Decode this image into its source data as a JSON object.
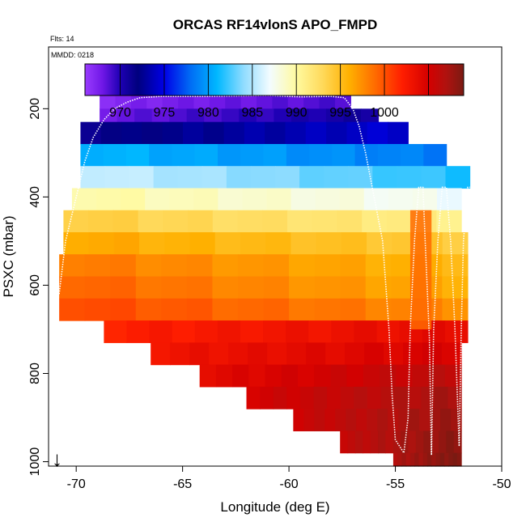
{
  "chart_data": {
    "type": "heatmap",
    "title": "ORCAS RF14vlonS APO_FMPD",
    "flights_label": "Flts: 14",
    "date_label": "MMDD: 0218",
    "xlabel": "Longitude (deg E)",
    "ylabel": "PSXC (mbar)",
    "xlim": [
      -71.3,
      -50
    ],
    "ylim": [
      1010,
      60
    ],
    "x_ticks": [
      -70,
      -65,
      -60,
      -55,
      -50
    ],
    "x_tick_labels": [
      "-70",
      "-65",
      "-60",
      "-55",
      "-50"
    ],
    "y_ticks": [
      200,
      400,
      600,
      800,
      1000
    ],
    "y_tick_labels": [
      "200",
      "400",
      "600",
      "800",
      "1000"
    ],
    "colorbar": {
      "range": [
        966,
        1009
      ],
      "tick_values": [
        970,
        975,
        980,
        985,
        990,
        995,
        1000
      ],
      "tick_labels": [
        "970",
        "975",
        "980",
        "985",
        "990",
        "995",
        "1000"
      ],
      "divisions": [
        970,
        975,
        980,
        985,
        990,
        995,
        1000,
        1005
      ],
      "stops": [
        {
          "v": 966,
          "c": "#9a3cff"
        },
        {
          "v": 968,
          "c": "#6f17e6"
        },
        {
          "v": 970,
          "c": "#1e00b4"
        },
        {
          "v": 972,
          "c": "#00007e"
        },
        {
          "v": 975,
          "c": "#0000e6"
        },
        {
          "v": 978,
          "c": "#006df5"
        },
        {
          "v": 981,
          "c": "#00b8ff"
        },
        {
          "v": 984,
          "c": "#8fdcff"
        },
        {
          "v": 987,
          "c": "#f3fcff"
        },
        {
          "v": 990,
          "c": "#fffaa0"
        },
        {
          "v": 993,
          "c": "#ffd95a"
        },
        {
          "v": 996,
          "c": "#ffb000"
        },
        {
          "v": 999,
          "c": "#ff6a00"
        },
        {
          "v": 1002,
          "c": "#ff1e00"
        },
        {
          "v": 1005,
          "c": "#d40000"
        },
        {
          "v": 1007,
          "c": "#b0120f"
        },
        {
          "v": 1009,
          "c": "#7a1a12"
        }
      ]
    },
    "rows": [
      {
        "p_top": 170,
        "p_bot": 200,
        "x0": -68.9,
        "x1": -57.1,
        "v_left": 967,
        "v_right": 969
      },
      {
        "p_top": 200,
        "p_bot": 230,
        "x0": -68.9,
        "x1": -55.8,
        "v_left": 968,
        "v_right": 971
      },
      {
        "p_top": 230,
        "p_bot": 280,
        "x0": -69.8,
        "x1": -54.4,
        "v_left": 971.5,
        "v_right": 974.5
      },
      {
        "p_top": 280,
        "p_bot": 330,
        "x0": -69.8,
        "x1": -52.6,
        "v_left": 981,
        "v_right": 978.5
      },
      {
        "p_top": 330,
        "p_bot": 380,
        "x0": -69.8,
        "x1": -51.5,
        "v_left": 986,
        "v_right": 981.5
      },
      {
        "p_top": 380,
        "p_bot": 430,
        "x0": -70.2,
        "x1": -51.9,
        "v_left": 990,
        "v_right": 987
      },
      {
        "p_top": 430,
        "p_bot": 480,
        "x0": -70.6,
        "x1": -51.9,
        "v_left": 994,
        "v_right": 991
      },
      {
        "p_top": 480,
        "p_bot": 530,
        "x0": -70.6,
        "x1": -51.6,
        "v_left": 996.5,
        "v_right": 994
      },
      {
        "p_top": 530,
        "p_bot": 580,
        "x0": -70.8,
        "x1": -51.6,
        "v_left": 998.5,
        "v_right": 995.5
      },
      {
        "p_top": 580,
        "p_bot": 630,
        "x0": -70.8,
        "x1": -51.6,
        "v_left": 999.5,
        "v_right": 996
      },
      {
        "p_top": 630,
        "p_bot": 680,
        "x0": -70.8,
        "x1": -51.6,
        "v_left": 1000.5,
        "v_right": 997.5
      },
      {
        "p_top": 680,
        "p_bot": 730,
        "x0": -68.7,
        "x1": -51.6,
        "v_left": 1002,
        "v_right": 1004
      },
      {
        "p_top": 730,
        "p_bot": 780,
        "x0": -66.5,
        "x1": -51.9,
        "v_left": 1003,
        "v_right": 1005
      },
      {
        "p_top": 780,
        "p_bot": 830,
        "x0": -64.2,
        "x1": -51.9,
        "v_left": 1004,
        "v_right": 1006.5
      },
      {
        "p_top": 830,
        "p_bot": 880,
        "x0": -62,
        "x1": -51.9,
        "v_left": 1005,
        "v_right": 1007.5
      },
      {
        "p_top": 880,
        "p_bot": 930,
        "x0": -59.8,
        "x1": -51.9,
        "v_left": 1005.5,
        "v_right": 1008
      },
      {
        "p_top": 930,
        "p_bot": 980,
        "x0": -57.6,
        "x1": -51.9,
        "v_left": 1006,
        "v_right": 1008.5
      },
      {
        "p_top": 980,
        "p_bot": 1010,
        "x0": -55.1,
        "x1": -51.9,
        "v_left": 1007,
        "v_right": 1009
      }
    ],
    "warm_intrusion": {
      "x0": -54.3,
      "x1": -53.3,
      "p_top": 430,
      "p_bot": 700,
      "v": 999
    },
    "flight_track": {
      "x": [
        -70.8,
        -70.5,
        -70.0,
        -69.6,
        -69.2,
        -68.7,
        -68.2,
        -67.6,
        -67.0,
        -66.0,
        -64.0,
        -61.0,
        -59.5,
        -58.0,
        -57.4,
        -57.0,
        -56.7,
        -56.4,
        -56.0,
        -55.6,
        -55.3,
        -55.15,
        -55.0,
        -54.8,
        -54.6,
        -54.4,
        -54.3,
        -54.1,
        -53.9,
        -53.7,
        -53.6,
        -53.4,
        -53.3,
        -53.2,
        -53.0,
        -52.8,
        -52.6,
        -52.4,
        -52.2,
        -52.0,
        -51.9,
        -51.8,
        -51.6,
        -51.5
      ],
      "y": [
        620,
        500,
        400,
        320,
        265,
        225,
        200,
        185,
        175,
        172,
        172,
        170,
        173,
        172,
        175,
        200,
        240,
        300,
        400,
        500,
        700,
        850,
        950,
        965,
        980,
        900,
        700,
        500,
        378,
        378,
        500,
        720,
        985,
        700,
        500,
        378,
        378,
        500,
        700,
        965,
        700,
        500,
        378,
        378
      ],
      "color": "#ffffff"
    },
    "north_arrow": {
      "glyph": "↓",
      "x": -70.9
    }
  }
}
